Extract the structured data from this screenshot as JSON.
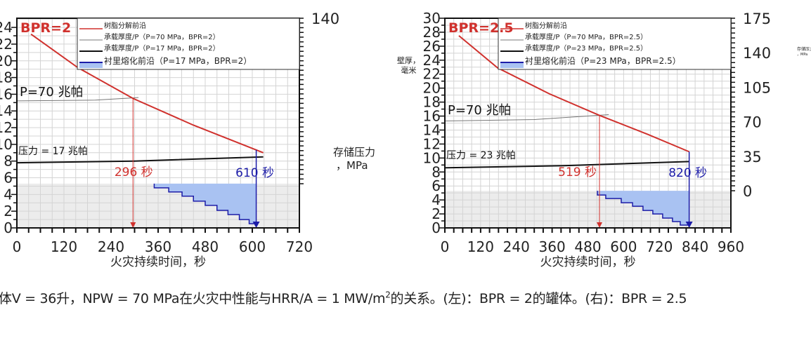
{
  "caption": {
    "before_sup": "体V = 36升，NPW = 70 MPa在火灾中性能与HRR/A = 1 MW/m",
    "sup": "2",
    "after_sup": "的关系。(左)：BPR = 2的罐体。(右)：BPR = 2.5"
  },
  "colors": {
    "red": "#d0312d",
    "blue": "#1c1ca8",
    "fill": "#a9c2f2",
    "gray_band": "#ececec",
    "grid": "#d4d4d4"
  },
  "chart_data": [
    {
      "type": "line",
      "title": "BPR=2",
      "xlabel": "火灾持续时间，秒",
      "ylabel": "",
      "y2label": "存储压力，MPa",
      "xlim": [
        0,
        720
      ],
      "ylim": [
        0,
        25.1
      ],
      "xticks": [
        0,
        120,
        240,
        360,
        480,
        600,
        720
      ],
      "yticks": [
        0,
        2,
        4,
        6,
        8,
        10,
        12,
        14,
        16,
        18,
        20,
        22,
        24
      ],
      "y2ticks": [
        140
      ],
      "y2lim": [
        0,
        140
      ],
      "band_top": 5.3,
      "legend": [
        "树脂分解前沿",
        "承载厚度/P（P=70 MPa，BPR=2）",
        "承载厚度/P（P=17 MPa，BPR=2）",
        "衬里熔化前沿（P=17 MPa，BPR=2）"
      ],
      "legend_placement": "top-right",
      "series": [
        {
          "name": "树脂分解前沿",
          "x": [
            36,
            155,
            296,
            450,
            628
          ],
          "y": [
            23.2,
            19.2,
            15.5,
            12.3,
            9.0
          ]
        },
        {
          "name": "承载厚度/P（P=70 MPa，BPR=2）",
          "x": [
            0,
            200,
            310
          ],
          "y": [
            15.2,
            15.3,
            15.6
          ]
        },
        {
          "name": "承载厚度/P（P=17 MPa，BPR=2）",
          "x": [
            0,
            300,
            628
          ],
          "y": [
            7.8,
            8.0,
            8.5
          ]
        },
        {
          "name": "衬里熔化前沿（P=17 MPa，BPR=2）",
          "steps_x": [
            350,
            387,
            421,
            450,
            480,
            510,
            538,
            567,
            592,
            610
          ],
          "steps_y": [
            4.8,
            4.3,
            3.8,
            3.2,
            2.7,
            2.1,
            1.6,
            1.0,
            0.5
          ]
        }
      ],
      "annotations": {
        "p70": "P=70 兆帕",
        "plow": "压力 = 17 兆帕",
        "t_red": "296 秒",
        "t_blue": "610 秒"
      },
      "t_red": 296,
      "t_blue": 610
    },
    {
      "type": "line",
      "title": "BPR=2.5",
      "xlabel": "火灾持续时间，秒",
      "ylabel": "壁厚，毫米",
      "y2label": "存储压力，MPa",
      "xlim": [
        0,
        960
      ],
      "ylim": [
        0,
        30
      ],
      "xticks": [
        0,
        120,
        240,
        360,
        480,
        600,
        720,
        840,
        960
      ],
      "yticks": [
        0,
        2,
        4,
        6,
        8,
        10,
        12,
        14,
        16,
        18,
        20,
        22,
        24,
        26,
        28,
        30
      ],
      "y2ticks": [
        0,
        35,
        70,
        105,
        140,
        175
      ],
      "y2lim": [
        0,
        175
      ],
      "band_top": 5.3,
      "legend": [
        "树脂分解前沿",
        "承载厚度/P（P=70 MPa，BPR=2.5）",
        "承载厚度/P（P=23 MPa，BPR=2.5）",
        "衬里熔化前沿（P=23 MPa，BPR=2.5）"
      ],
      "legend_placement": "top-right",
      "series": [
        {
          "name": "树脂分解前沿",
          "x": [
            47,
            177,
            350,
            519,
            680,
            820
          ],
          "y": [
            27.5,
            22.9,
            19.2,
            16.1,
            13.4,
            10.9
          ]
        },
        {
          "name": "承载厚度/P（P=70 MPa，BPR=2.5）",
          "x": [
            0,
            300,
            550
          ],
          "y": [
            15.3,
            15.5,
            16.2
          ]
        },
        {
          "name": "承载厚度/P（P=23 MPa，BPR=2.5）",
          "x": [
            0,
            400,
            820
          ],
          "y": [
            8.6,
            8.9,
            9.5
          ]
        },
        {
          "name": "衬里熔化前沿（P=23 MPa，BPR=2.5）",
          "steps_x": [
            512,
            540,
            592,
            630,
            665,
            698,
            731,
            764,
            790,
            820
          ],
          "steps_y": [
            4.7,
            4.2,
            3.6,
            3.1,
            2.5,
            2.0,
            1.4,
            0.9,
            0.4
          ]
        }
      ],
      "annotations": {
        "p70": "P=70 兆帕",
        "plow": "压力 = 23 兆帕",
        "t_red": "519 秒",
        "t_blue": "820 秒"
      },
      "t_red": 519,
      "t_blue": 820
    }
  ]
}
